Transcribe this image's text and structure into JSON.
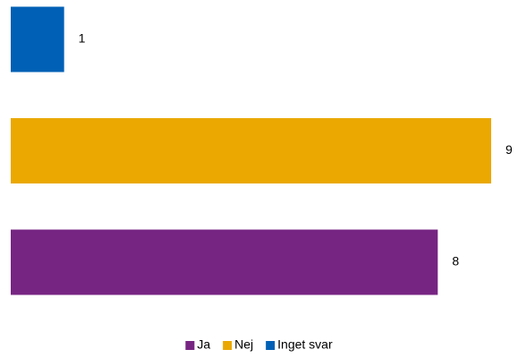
{
  "chart_data": {
    "type": "bar",
    "orientation": "horizontal",
    "categories": [
      "Ja",
      "Nej",
      "Inget svar"
    ],
    "values": [
      8,
      9,
      1
    ],
    "colors": [
      "#772583",
      "#eaa800",
      "#0060b5"
    ],
    "legend": "bottom"
  }
}
